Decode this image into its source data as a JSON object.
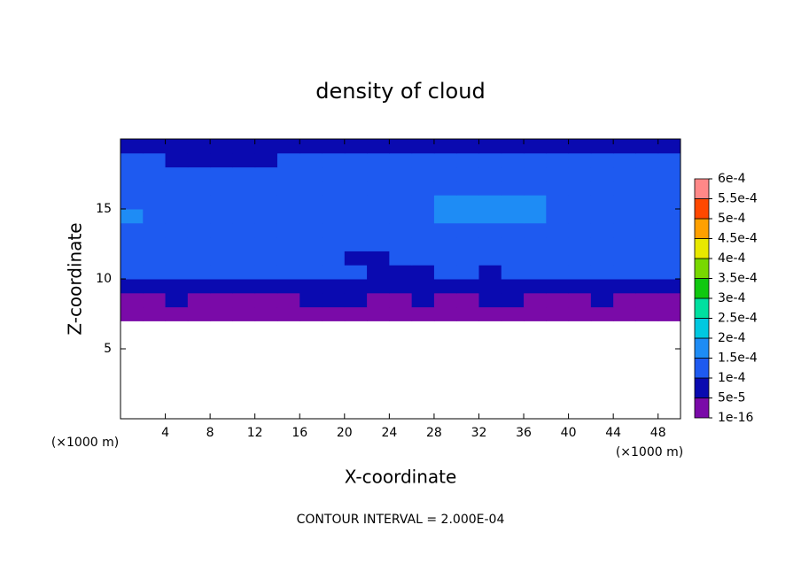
{
  "chart_data": {
    "type": "contour",
    "title": "density of cloud",
    "xlabel": "X-coordinate",
    "ylabel": "Z-coordinate",
    "x_unit_label": "(×1000 m)",
    "z_unit_label": "(×1000 m)",
    "note": "CONTOUR INTERVAL = 2.000E-04",
    "xlim": [
      0,
      50
    ],
    "ylim": [
      0,
      20
    ],
    "xticks": [
      4,
      8,
      12,
      16,
      20,
      24,
      28,
      32,
      36,
      40,
      44,
      48
    ],
    "yticks": [
      5,
      10,
      15
    ],
    "x": [
      1,
      3,
      5,
      7,
      9,
      11,
      13,
      15,
      17,
      19,
      21,
      23,
      25,
      27,
      29,
      31,
      33,
      35,
      37,
      39,
      41,
      43,
      45,
      47,
      49
    ],
    "y": [
      7.5,
      8.5,
      9.5,
      10.5,
      11.5,
      12.5,
      13.5,
      14.5,
      15.5,
      16.5,
      17.5,
      18.5,
      19.5
    ],
    "z": [
      [
        2e-05,
        2e-05,
        2e-05,
        2e-05,
        2e-05,
        2e-05,
        2e-05,
        2e-05,
        2e-05,
        2e-05,
        2e-05,
        2e-05,
        2e-05,
        2e-05,
        2e-05,
        2e-05,
        2e-05,
        2e-05,
        2e-05,
        2e-05,
        2e-05,
        2e-05,
        2e-05,
        2e-05,
        2e-05
      ],
      [
        4e-05,
        4e-05,
        6e-05,
        4e-05,
        4e-05,
        4e-05,
        4e-05,
        4e-05,
        6e-05,
        6e-05,
        6e-05,
        4e-05,
        4e-05,
        6e-05,
        4e-05,
        4e-05,
        6e-05,
        6e-05,
        4e-05,
        4e-05,
        4e-05,
        6e-05,
        4e-05,
        4e-05,
        4e-05
      ],
      [
        8e-05,
        8e-05,
        8e-05,
        8e-05,
        8e-05,
        8e-05,
        8e-05,
        8e-05,
        8e-05,
        8e-05,
        8e-05,
        7e-05,
        8e-05,
        7e-05,
        8e-05,
        8e-05,
        8e-05,
        8e-05,
        8e-05,
        8e-05,
        8e-05,
        8e-05,
        8e-05,
        8e-05,
        8e-05
      ],
      [
        0.000105,
        0.000105,
        0.000105,
        0.000105,
        0.0001,
        0.000105,
        0.000105,
        0.000105,
        0.000105,
        0.000105,
        0.000105,
        8e-05,
        7e-05,
        9e-05,
        0.000105,
        0.000105,
        9e-05,
        0.000105,
        0.000105,
        0.000105,
        0.000105,
        0.000105,
        0.000105,
        0.000105,
        0.000105
      ],
      [
        0.00012,
        0.00012,
        0.00012,
        0.00012,
        0.00012,
        0.00012,
        0.00012,
        0.00012,
        0.00012,
        0.00012,
        9e-05,
        9e-05,
        0.00012,
        0.00012,
        0.00012,
        0.00012,
        0.00012,
        0.00012,
        0.00012,
        0.00012,
        0.00012,
        0.00012,
        0.00012,
        0.00012,
        0.00012
      ],
      [
        0.00013,
        0.00013,
        0.00013,
        0.00013,
        0.00013,
        0.00013,
        0.00013,
        0.00013,
        0.00013,
        0.00011,
        0.00011,
        0.00013,
        0.00013,
        0.00013,
        0.00013,
        0.00013,
        0.00013,
        0.00013,
        0.00013,
        0.00013,
        0.00013,
        0.00013,
        0.00013,
        0.00013,
        0.00013
      ],
      [
        0.00014,
        0.00014,
        0.00014,
        0.00014,
        0.00014,
        0.00014,
        0.00014,
        0.00014,
        0.00012,
        0.00012,
        0.00014,
        0.00014,
        0.00014,
        0.00014,
        0.00014,
        0.00014,
        0.00014,
        0.00014,
        0.00014,
        0.00014,
        0.00014,
        0.00014,
        0.00014,
        0.00014,
        0.00014
      ],
      [
        0.000155,
        0.00014,
        0.00014,
        0.00014,
        0.00014,
        0.00014,
        0.00012,
        0.00012,
        0.00014,
        0.00014,
        0.00014,
        0.00014,
        0.00014,
        0.00014,
        0.00016,
        0.00016,
        0.00016,
        0.00016,
        0.00016,
        0.00014,
        0.00014,
        0.00014,
        0.00014,
        0.00014,
        0.00014
      ],
      [
        0.000145,
        0.000145,
        0.000145,
        0.000145,
        0.000145,
        0.00012,
        0.00012,
        0.000145,
        0.000145,
        0.000145,
        0.000145,
        0.000145,
        0.000145,
        0.000145,
        0.00016,
        0.00016,
        0.00016,
        0.00016,
        0.00016,
        0.000145,
        0.000145,
        0.000145,
        0.000145,
        0.000145,
        0.000145
      ],
      [
        0.000145,
        0.000145,
        0.000145,
        0.000145,
        0.000115,
        0.000115,
        0.000145,
        0.000145,
        0.000145,
        0.000145,
        0.000145,
        0.000145,
        0.000145,
        0.000145,
        0.000145,
        0.000145,
        0.000145,
        0.000145,
        0.000145,
        0.000145,
        0.000145,
        0.000145,
        0.000145,
        0.000145,
        0.000145
      ],
      [
        0.000135,
        0.000135,
        0.000135,
        0.00011,
        0.00011,
        0.000135,
        0.000135,
        0.000135,
        0.000135,
        0.000135,
        0.000135,
        0.000135,
        0.000135,
        0.000135,
        0.000135,
        0.000135,
        0.000135,
        0.000135,
        0.000135,
        0.000135,
        0.000135,
        0.000135,
        0.000135,
        0.000135,
        0.000135
      ],
      [
        0.00012,
        0.00012,
        9e-05,
        9e-05,
        9e-05,
        9e-05,
        9e-05,
        0.00012,
        0.00012,
        0.00012,
        0.00012,
        0.00012,
        0.00012,
        0.00012,
        0.00012,
        0.00012,
        0.00012,
        0.00012,
        0.00012,
        0.00012,
        0.00012,
        0.00012,
        0.00012,
        0.00012,
        0.00012
      ],
      [
        9e-05,
        9e-05,
        9e-05,
        9e-05,
        9e-05,
        9e-05,
        9e-05,
        9e-05,
        9e-05,
        9e-05,
        9e-05,
        9e-05,
        9e-05,
        9e-05,
        9e-05,
        9e-05,
        9e-05,
        9e-05,
        9e-05,
        9e-05,
        9e-05,
        7e-05,
        7e-05,
        9e-05,
        9e-05
      ]
    ],
    "colorbar_ticks": [
      1e-16,
      {
        "value": 5e-05,
        "label": "5e-5"
      },
      {
        "value": 0.0001,
        "label": "1e-4"
      },
      {
        "value": 0.00015,
        "label": "1.5e-4"
      },
      {
        "value": 0.0002,
        "label": "2e-4"
      },
      {
        "value": 0.00025,
        "label": "2.5e-4"
      },
      {
        "value": 0.0003,
        "label": "3e-4"
      },
      {
        "value": 0.00035,
        "label": "3.5e-4"
      },
      {
        "value": 0.0004,
        "label": "4e-4"
      },
      {
        "value": 0.00045,
        "label": "4.5e-4"
      },
      {
        "value": 0.0005,
        "label": "5e-4"
      },
      {
        "value": 0.00055,
        "label": "5.5e-4"
      },
      {
        "value": 0.0006,
        "label": "6e-4"
      }
    ],
    "colors": [
      "#7a0aa8",
      "#0a0ab0",
      "#1e5af0",
      "#1e8cf5",
      "#00c8e0",
      "#00e0a0",
      "#10c810",
      "#78d800",
      "#e8e800",
      "#ffa000",
      "#ff4800",
      "#ff8888"
    ]
  }
}
